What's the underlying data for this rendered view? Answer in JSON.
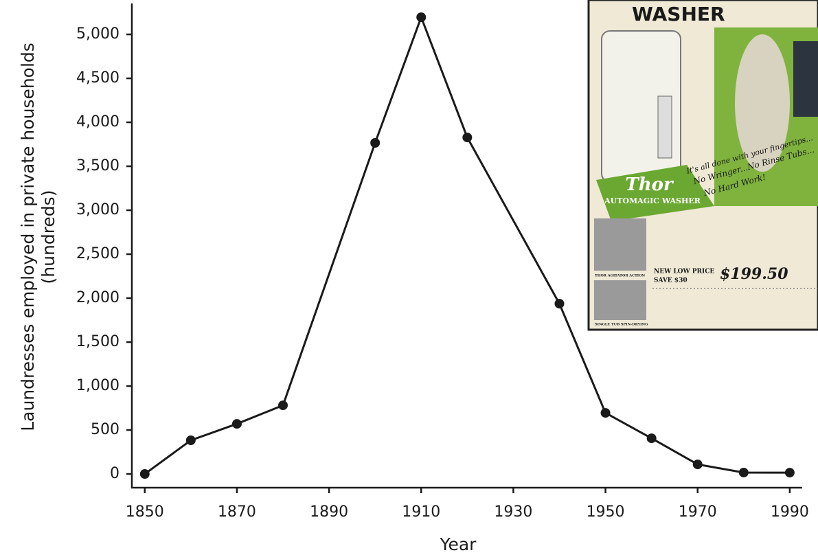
{
  "chart_data": {
    "type": "line",
    "x_label": "Year",
    "y_label": [
      "Laundresses employed in private households",
      "(hundreds)"
    ],
    "x": [
      1850,
      1860,
      1870,
      1880,
      1900,
      1910,
      1920,
      1940,
      1950,
      1960,
      1970,
      1980,
      1990
    ],
    "values": [
      0,
      383,
      570,
      781,
      3766,
      5195,
      3828,
      1937,
      695,
      406,
      109,
      16,
      15
    ],
    "color": "#1a1a1a",
    "xlim": [
      1847.2,
      1992.7
    ],
    "xticks": [
      1850,
      1870,
      1890,
      1910,
      1930,
      1950,
      1970,
      1990
    ],
    "ylim": [
      -156,
      5352
    ],
    "yticks": [
      0,
      500,
      {
        "value": 1000,
        "label": "1,000"
      },
      {
        "value": 1500,
        "label": "1,500"
      },
      {
        "value": 2000,
        "label": "2,000"
      },
      {
        "value": 2500,
        "label": "2,500"
      },
      {
        "value": 3000,
        "label": "3,000"
      },
      {
        "value": 3500,
        "label": "3,500"
      },
      {
        "value": 4000,
        "label": "4,000"
      },
      {
        "value": 4500,
        "label": "4,500"
      },
      {
        "value": 5000,
        "label": "5,000"
      }
    ],
    "grid": false,
    "inset_texts": [
      "WASHER",
      "Thor",
      "AUTOMAGIC WASHER",
      "It's all done with your fingertips...",
      "No Wringer...No Rinse Tubs...",
      "No Hard Work!",
      "NEW LOW PRICE",
      "SAVE $30",
      "$199.50",
      "THOR AGITATOR ACTION",
      "SINGLE TUB SPIN-DRYING"
    ]
  }
}
